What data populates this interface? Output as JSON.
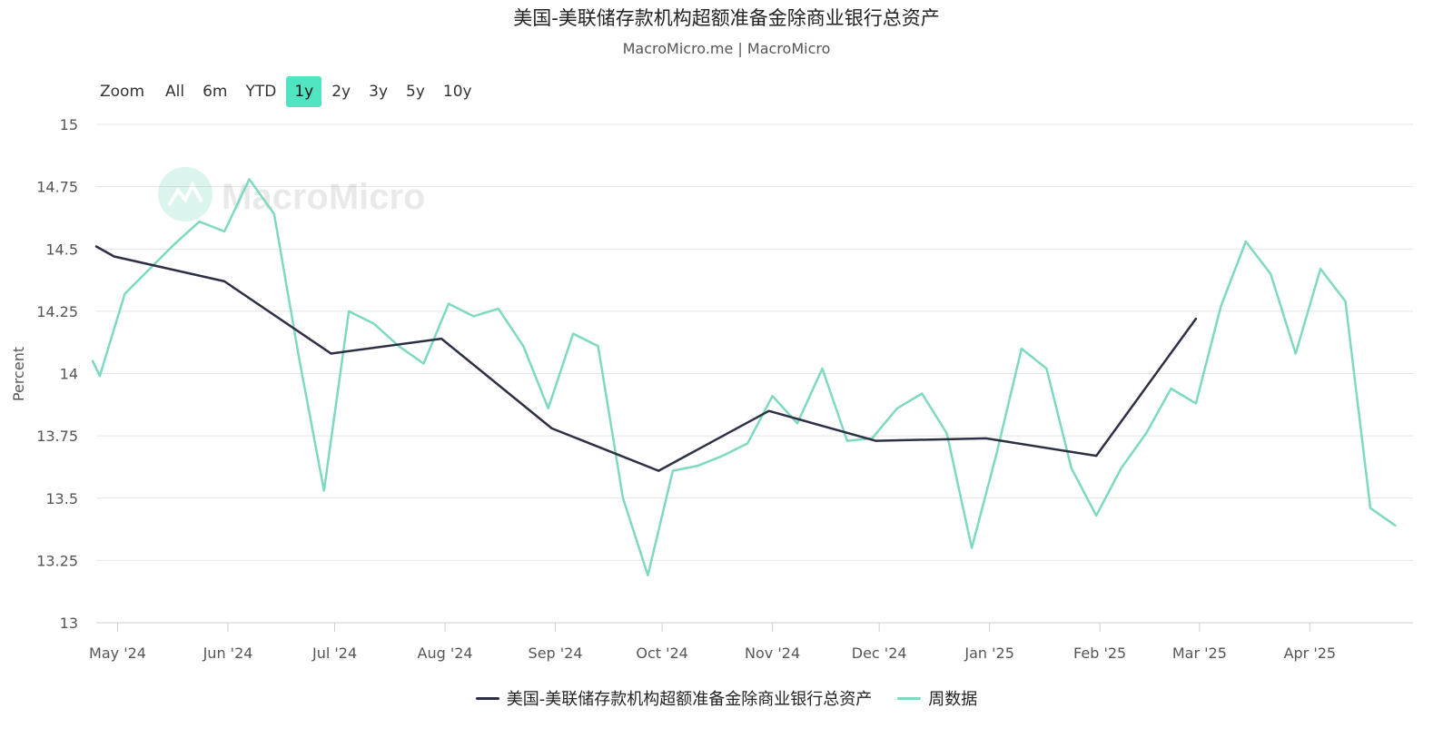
{
  "title": "美国-美联储存款机构超额准备金除商业银行总资产",
  "subtitle": "MacroMicro.me | MacroMicro",
  "zoom": {
    "label": "Zoom",
    "buttons": [
      "All",
      "6m",
      "YTD",
      "1y",
      "2y",
      "3y",
      "5y",
      "10y"
    ],
    "active": "1y"
  },
  "watermark": "MacroMicro",
  "colors": {
    "monthly": "#2d2f44",
    "weekly": "#7dd9c0",
    "grid": "#e4e4e4",
    "axis": "#cfcfcf"
  },
  "chart_data": {
    "type": "line",
    "ylabel": "Percent",
    "ylim": [
      13,
      15
    ],
    "yticks": [
      13,
      13.25,
      13.5,
      13.75,
      14,
      14.25,
      14.5,
      14.75,
      15
    ],
    "xlim": [
      "2024-04-25",
      "2025-04-30"
    ],
    "xticks": [
      {
        "label": "May '24",
        "date": "2024-05-01"
      },
      {
        "label": "Jun '24",
        "date": "2024-06-01"
      },
      {
        "label": "Jul '24",
        "date": "2024-07-01"
      },
      {
        "label": "Aug '24",
        "date": "2024-08-01"
      },
      {
        "label": "Sep '24",
        "date": "2024-09-01"
      },
      {
        "label": "Oct '24",
        "date": "2024-10-01"
      },
      {
        "label": "Nov '24",
        "date": "2024-11-01"
      },
      {
        "label": "Dec '24",
        "date": "2024-12-01"
      },
      {
        "label": "Jan '25",
        "date": "2025-01-01"
      },
      {
        "label": "Feb '25",
        "date": "2025-02-01"
      },
      {
        "label": "Mar '25",
        "date": "2025-03-01"
      },
      {
        "label": "Apr '25",
        "date": "2025-04-01"
      }
    ],
    "grid": true,
    "legend_position": "bottom-center",
    "series": [
      {
        "name": "美国-美联储存款机构超额准备金除商业银行总资产",
        "color": "#2d2f44",
        "points": [
          [
            "2024-04-25",
            14.51
          ],
          [
            "2024-04-30",
            14.47
          ],
          [
            "2024-05-31",
            14.37
          ],
          [
            "2024-06-30",
            14.08
          ],
          [
            "2024-07-31",
            14.14
          ],
          [
            "2024-08-31",
            13.78
          ],
          [
            "2024-09-30",
            13.61
          ],
          [
            "2024-10-31",
            13.85
          ],
          [
            "2024-11-30",
            13.73
          ],
          [
            "2024-12-31",
            13.74
          ],
          [
            "2025-01-31",
            13.67
          ],
          [
            "2025-02-28",
            14.22
          ]
        ]
      },
      {
        "name": "周数据",
        "color": "#7dd9c0",
        "points": [
          [
            "2024-04-24",
            14.05
          ],
          [
            "2024-04-26",
            13.99
          ],
          [
            "2024-05-03",
            14.32
          ],
          [
            "2024-05-10",
            14.42
          ],
          [
            "2024-05-17",
            14.52
          ],
          [
            "2024-05-24",
            14.61
          ],
          [
            "2024-05-31",
            14.57
          ],
          [
            "2024-06-07",
            14.78
          ],
          [
            "2024-06-14",
            14.64
          ],
          [
            "2024-06-21",
            14.06
          ],
          [
            "2024-06-28",
            13.53
          ],
          [
            "2024-07-05",
            14.25
          ],
          [
            "2024-07-12",
            14.2
          ],
          [
            "2024-07-19",
            14.11
          ],
          [
            "2024-07-26",
            14.04
          ],
          [
            "2024-08-02",
            14.28
          ],
          [
            "2024-08-09",
            14.23
          ],
          [
            "2024-08-16",
            14.26
          ],
          [
            "2024-08-23",
            14.11
          ],
          [
            "2024-08-30",
            13.86
          ],
          [
            "2024-09-06",
            14.16
          ],
          [
            "2024-09-13",
            14.11
          ],
          [
            "2024-09-20",
            13.5
          ],
          [
            "2024-09-27",
            13.19
          ],
          [
            "2024-10-04",
            13.61
          ],
          [
            "2024-10-11",
            13.63
          ],
          [
            "2024-10-18",
            13.67
          ],
          [
            "2024-10-25",
            13.72
          ],
          [
            "2024-11-01",
            13.91
          ],
          [
            "2024-11-08",
            13.8
          ],
          [
            "2024-11-15",
            14.02
          ],
          [
            "2024-11-22",
            13.73
          ],
          [
            "2024-11-29",
            13.74
          ],
          [
            "2024-12-06",
            13.86
          ],
          [
            "2024-12-13",
            13.92
          ],
          [
            "2024-12-20",
            13.76
          ],
          [
            "2024-12-27",
            13.3
          ],
          [
            "2025-01-03",
            13.68
          ],
          [
            "2025-01-10",
            14.1
          ],
          [
            "2025-01-17",
            14.02
          ],
          [
            "2025-01-24",
            13.62
          ],
          [
            "2025-01-31",
            13.43
          ],
          [
            "2025-02-07",
            13.62
          ],
          [
            "2025-02-14",
            13.76
          ],
          [
            "2025-02-21",
            13.94
          ],
          [
            "2025-02-28",
            13.88
          ],
          [
            "2025-03-07",
            14.27
          ],
          [
            "2025-03-14",
            14.53
          ],
          [
            "2025-03-21",
            14.4
          ],
          [
            "2025-03-28",
            14.08
          ],
          [
            "2025-04-04",
            14.42
          ],
          [
            "2025-04-11",
            14.29
          ],
          [
            "2025-04-18",
            13.46
          ],
          [
            "2025-04-25",
            13.39
          ]
        ]
      }
    ]
  }
}
